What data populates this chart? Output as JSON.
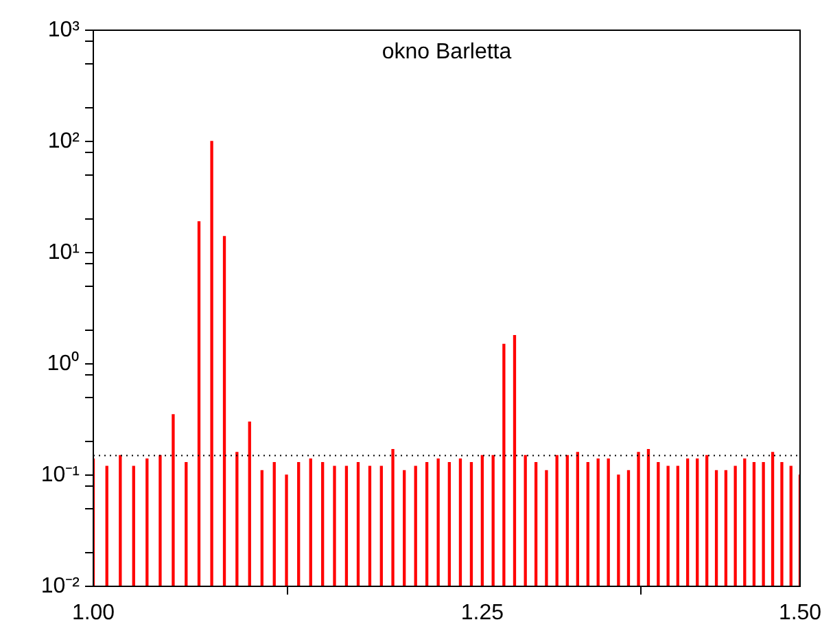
{
  "chart_data": {
    "type": "bar",
    "title": "okno Barletta",
    "log": "xy",
    "color": "#ff0000",
    "x": [
      1,
      1.0078,
      1.0156,
      1.0234,
      1.0313,
      1.0391,
      1.0469,
      1.0547,
      1.0625,
      1.0703,
      1.0781,
      1.0859,
      1.0938,
      1.1016,
      1.1094,
      1.1172,
      1.125,
      1.1328,
      1.1406,
      1.1484,
      1.1563,
      1.1641,
      1.1719,
      1.1797,
      1.1875,
      1.1953,
      1.2031,
      1.2109,
      1.2188,
      1.2266,
      1.2344,
      1.2422,
      1.25,
      1.2578,
      1.2656,
      1.2734,
      1.2813,
      1.2891,
      1.2969,
      1.3047,
      1.3125,
      1.3203,
      1.3281,
      1.3359,
      1.3438,
      1.3516,
      1.3594,
      1.3672,
      1.375,
      1.3828,
      1.3906,
      1.3984,
      1.4063,
      1.4141,
      1.4219,
      1.4297,
      1.4375,
      1.4453,
      1.4531,
      1.4609,
      1.4688,
      1.4766,
      1.4844,
      1.4922,
      1.5
    ],
    "values": [
      0.14,
      0.12,
      0.15,
      0.12,
      0.14,
      0.15,
      0.35,
      0.13,
      19,
      100,
      14,
      0.16,
      0.3,
      0.11,
      0.13,
      0.1,
      0.13,
      0.14,
      0.13,
      0.12,
      0.12,
      0.13,
      0.12,
      0.12,
      0.17,
      0.11,
      0.12,
      0.13,
      0.14,
      0.13,
      0.14,
      0.13,
      0.15,
      0.15,
      1.5,
      1.8,
      0.15,
      0.13,
      0.11,
      0.15,
      0.15,
      0.16,
      0.13,
      0.14,
      0.14,
      0.1,
      0.11,
      0.16,
      0.17,
      0.13,
      0.12,
      0.12,
      0.14,
      0.14,
      0.15,
      0.11,
      0.11,
      0.12,
      0.14,
      0.13,
      0.13,
      0.16,
      0.13,
      0.12,
      0.1
    ],
    "xlim": [
      1,
      1.5
    ],
    "xticks": [
      {
        "value": 1,
        "label": "1.00"
      },
      {
        "value": 1.25,
        "label": "1.25"
      },
      {
        "value": 1.5,
        "label": "1.50"
      }
    ],
    "ylim": [
      0.01,
      1000
    ],
    "yticks": [
      {
        "value": 0.01,
        "label": "10⁻²"
      },
      {
        "value": 0.02,
        "label": null
      },
      {
        "value": 0.05,
        "label": null
      },
      {
        "value": 0.08,
        "label": null
      },
      {
        "value": 0.1,
        "label": "10⁻¹"
      },
      {
        "value": 0.2,
        "label": null
      },
      {
        "value": 0.5,
        "label": null
      },
      {
        "value": 0.8,
        "label": null
      },
      {
        "value": 1,
        "label": "10⁰"
      },
      {
        "value": 2,
        "label": null
      },
      {
        "value": 5,
        "label": null
      },
      {
        "value": 8,
        "label": null
      },
      {
        "value": 10,
        "label": "10¹"
      },
      {
        "value": 20,
        "label": null
      },
      {
        "value": 50,
        "label": null
      },
      {
        "value": 80,
        "label": null
      },
      {
        "value": 100,
        "label": "10²"
      },
      {
        "value": 200,
        "label": null
      },
      {
        "value": 500,
        "label": null
      },
      {
        "value": 800,
        "label": null
      },
      {
        "value": 1000,
        "label": "10³"
      }
    ],
    "ref_lines": [
      {
        "axis": "y",
        "value": 0.15,
        "color": "#000000",
        "line_style": "dotted"
      }
    ],
    "grid": false,
    "legend": false
  }
}
